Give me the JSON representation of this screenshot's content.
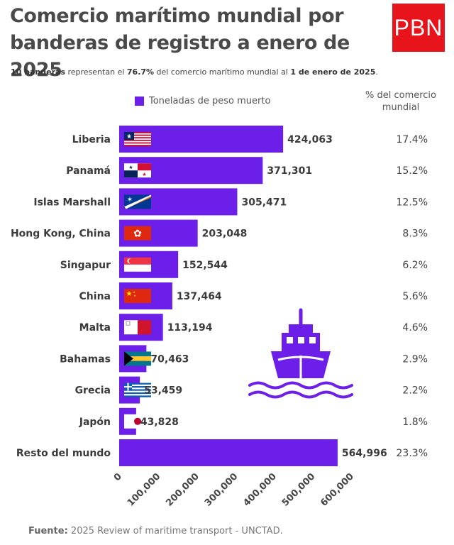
{
  "header": {
    "title": "Comercio marítimo mundial por banderas de registro a enero de 2025",
    "logo_text": "PBN"
  },
  "subtitle": {
    "part1": "10 banderas",
    "part2": " representan el ",
    "part3": "76.7%",
    "part4": " del comercio marítimo mundial al ",
    "part5": "1 de enero de 2025",
    "part6": "."
  },
  "legend": {
    "label": "Toneladas de peso muerto"
  },
  "pct_header": {
    "line1": "% del comercio",
    "line2": "mundial"
  },
  "source": {
    "label": "Fuente:",
    "text": " 2025 Review of maritime transport - UNCTAD."
  },
  "colors": {
    "bar": "#6b1fe8",
    "logo": "#e8141c"
  },
  "decoration": {
    "icon": "ship-icon"
  },
  "chart_data": {
    "type": "bar",
    "orientation": "horizontal",
    "categories": [
      "Liberia",
      "Panamá",
      "Islas Marshall",
      "Hong Kong, China",
      "Singapur",
      "China",
      "Malta",
      "Bahamas",
      "Grecia",
      "Japón",
      "Resto del mundo"
    ],
    "flags": [
      "liberia-flag-icon",
      "panama-flag-icon",
      "marshall-islands-flag-icon",
      "hong-kong-flag-icon",
      "singapore-flag-icon",
      "china-flag-icon",
      "malta-flag-icon",
      "bahamas-flag-icon",
      "greece-flag-icon",
      "japan-flag-icon",
      ""
    ],
    "series": [
      {
        "name": "Toneladas de peso muerto",
        "values": [
          424063,
          371301,
          305471,
          203048,
          152544,
          137464,
          113194,
          70463,
          53459,
          43828,
          564996
        ],
        "labels": [
          "424,063",
          "371,301",
          "305,471",
          "203,048",
          "152,544",
          "137,464",
          "113,194",
          "70,463",
          "53,459",
          "43,828",
          "564,996"
        ]
      }
    ],
    "percentages": [
      "17.4%",
      "15.2%",
      "12.5%",
      "8.3%",
      "6.2%",
      "5.6%",
      "4.6%",
      "2.9%",
      "2.2%",
      "1.8%",
      "23.3%"
    ],
    "xlim": [
      0,
      600000
    ],
    "xticks": [
      0,
      100000,
      200000,
      300000,
      400000,
      500000,
      600000
    ],
    "xtick_labels": [
      "0",
      "100,000",
      "200,000",
      "300,000",
      "400,000",
      "500,000",
      "600,000"
    ],
    "grid": false,
    "legend_position": "top"
  }
}
